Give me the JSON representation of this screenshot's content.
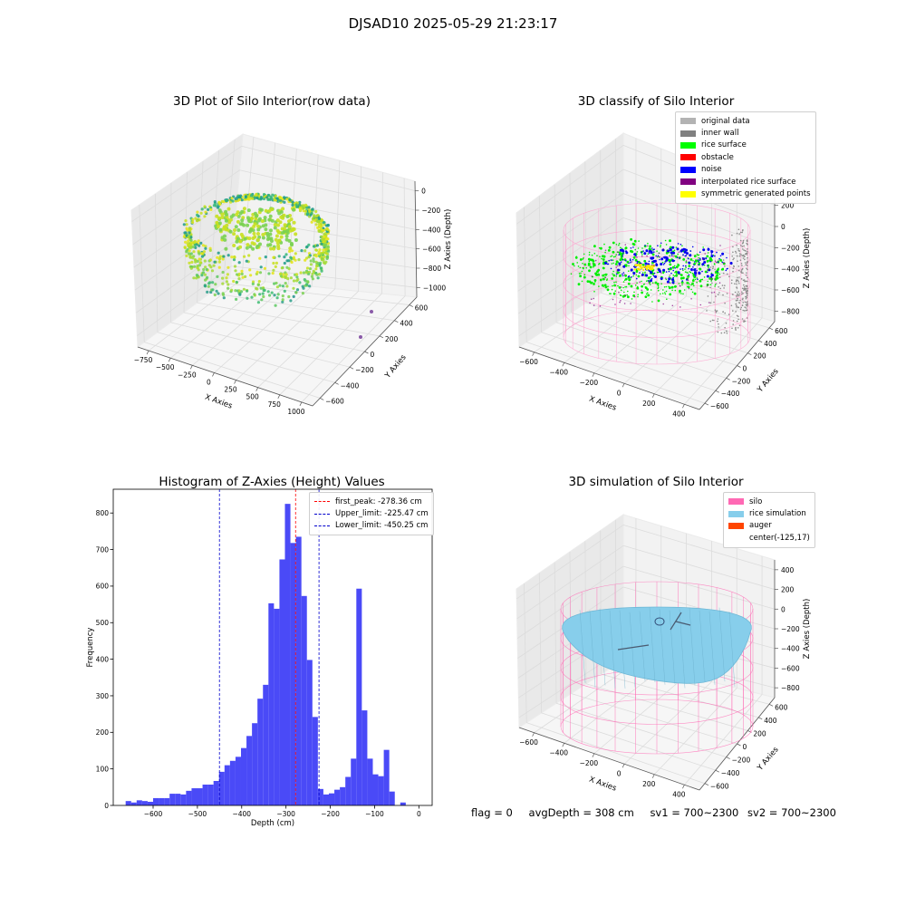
{
  "figure": {
    "suptitle": "DJSAD10 2025-05-29 21:23:17"
  },
  "panels": {
    "raw": {
      "title": "3D Plot of Silo Interior(row data)",
      "xlabel": "X Axies",
      "ylabel": "Y Axies",
      "zlabel": "Z Axies (Depth)",
      "xticks": [
        "−750",
        "−500",
        "−250",
        "0",
        "250",
        "500",
        "750",
        "1000"
      ],
      "yticks": [
        "−600",
        "−400",
        "−200",
        "0",
        "200",
        "400",
        "600"
      ],
      "zticks": [
        "0",
        "−200",
        "−400",
        "−600",
        "−800",
        "−1000"
      ]
    },
    "classify": {
      "title": "3D classify of Silo Interior",
      "xlabel": "X Axies",
      "ylabel": "Y Axies",
      "zlabel": "Z Axies (Depth)",
      "xticks": [
        "−600",
        "−400",
        "−200",
        "0",
        "200",
        "400"
      ],
      "yticks": [
        "−600",
        "−400",
        "−200",
        "0",
        "200",
        "400",
        "600"
      ],
      "zticks": [
        "200",
        "0",
        "−200",
        "−400",
        "−600",
        "−800"
      ],
      "legend": [
        {
          "label": "original data",
          "color": "#b3b3b3"
        },
        {
          "label": "inner wall",
          "color": "#808080"
        },
        {
          "label": "rice surface",
          "color": "#00ff00"
        },
        {
          "label": "obstacle",
          "color": "#ff0000"
        },
        {
          "label": "noise",
          "color": "#0000ff"
        },
        {
          "label": "interpolated rice surface",
          "color": "#800080"
        },
        {
          "label": "symmetric generated points",
          "color": "#ffff00"
        }
      ]
    },
    "simulation": {
      "title": "3D simulation of Silo Interior",
      "xlabel": "X Axies",
      "ylabel": "Y Axies",
      "zlabel": "Z Axies (Depth)",
      "xticks": [
        "−600",
        "−400",
        "−200",
        "0",
        "200",
        "400"
      ],
      "yticks": [
        "−600",
        "−400",
        "−200",
        "0",
        "200",
        "400",
        "600"
      ],
      "zticks": [
        "400",
        "200",
        "0",
        "−200",
        "−400",
        "−600",
        "−800"
      ],
      "legend": [
        {
          "label": "silo",
          "color": "#ff69b4"
        },
        {
          "label": "rice simulation",
          "color": "#87ceeb"
        },
        {
          "label": "auger",
          "color": "#ff4500"
        },
        {
          "label": "center(-125,17)",
          "color": ""
        }
      ]
    }
  },
  "chart_data": {
    "type": "bar",
    "title": "Histogram of Z-Axies (Height) Values",
    "xlabel": "Depth (cm)",
    "ylabel": "Frequency",
    "xlim": [
      -690,
      30
    ],
    "ylim": [
      0,
      865
    ],
    "xticks": [
      -600,
      -500,
      -400,
      -300,
      -200,
      -100,
      0
    ],
    "yticks": [
      0,
      100,
      200,
      300,
      400,
      500,
      600,
      700,
      800
    ],
    "bar_color": "#4a4af7",
    "bin_width": 12.4,
    "bin_left_edges": [
      -662,
      -649.6,
      -637.2,
      -624.8,
      -612.4,
      -600,
      -587.6,
      -575.2,
      -562.8,
      -550.4,
      -538,
      -525.6,
      -513.2,
      -500.8,
      -488.4,
      -476,
      -463.6,
      -451.2,
      -438.8,
      -426.4,
      -414,
      -401.6,
      -389.2,
      -376.8,
      -364.4,
      -352,
      -339.6,
      -327.2,
      -314.8,
      -302.4,
      -290,
      -277.6,
      -265.2,
      -252.8,
      -240.4,
      -228,
      -215.6,
      -203.2,
      -190.8,
      -178.4,
      -166,
      -153.6,
      -141.2,
      -128.8,
      -116.4,
      -104,
      -91.6,
      -79.2,
      -66.8,
      -54.4,
      -42,
      -29.6,
      -17.2,
      -4.8
    ],
    "counts": [
      12,
      8,
      14,
      12,
      10,
      20,
      20,
      20,
      32,
      32,
      30,
      40,
      47,
      47,
      57,
      57,
      67,
      92,
      110,
      122,
      133,
      157,
      190,
      225,
      292,
      330,
      553,
      538,
      673,
      825,
      718,
      735,
      573,
      398,
      242,
      45,
      30,
      33,
      43,
      50,
      78,
      128,
      593,
      260,
      128,
      85,
      80,
      152,
      38,
      0,
      8,
      0,
      0,
      0
    ],
    "vlines": [
      {
        "label": "first_peak: -278.36 cm",
        "x": -278.36,
        "color": "#ff0000"
      },
      {
        "label": "Upper_limit: -225.47 cm",
        "x": -225.47,
        "color": "#0000cc"
      },
      {
        "label": "Lower_limit: -450.25 cm",
        "x": -450.25,
        "color": "#0000cc"
      }
    ],
    "legend_position": "upper right"
  },
  "footer": {
    "flag": "flag = 0",
    "avg_depth": "avgDepth = 308 cm",
    "sv1": "sv1 = 700~2300",
    "sv2": "sv2 = 700~2300"
  }
}
